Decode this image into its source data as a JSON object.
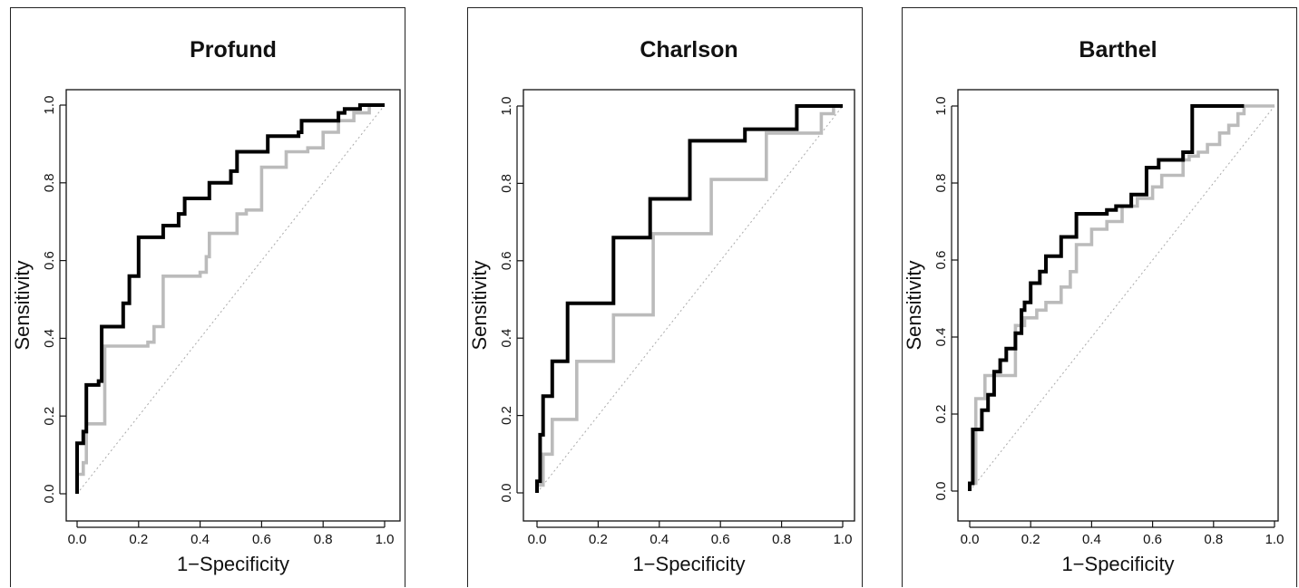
{
  "chart_data": [
    {
      "type": "line",
      "title": "Profund",
      "xlabel": "1−Specificity",
      "ylabel": "Sensitivity",
      "xlim": [
        0,
        1
      ],
      "ylim": [
        0,
        1
      ],
      "xticks": [
        "0.0",
        "0.2",
        "0.4",
        "0.6",
        "0.8",
        "1.0"
      ],
      "yticks": [
        "0.0",
        "0.2",
        "0.4",
        "0.6",
        "0.8",
        "1.0"
      ],
      "reference_line": {
        "style": "dotted",
        "color": "#aaaaaa",
        "x": [
          0,
          1
        ],
        "y": [
          0,
          1
        ]
      },
      "series": [
        {
          "color": "#000000",
          "x": [
            0.0,
            0.0,
            0.02,
            0.02,
            0.03,
            0.03,
            0.07,
            0.07,
            0.08,
            0.08,
            0.15,
            0.15,
            0.17,
            0.17,
            0.2,
            0.2,
            0.28,
            0.28,
            0.33,
            0.33,
            0.35,
            0.35,
            0.43,
            0.43,
            0.5,
            0.5,
            0.52,
            0.52,
            0.62,
            0.62,
            0.72,
            0.72,
            0.73,
            0.73,
            0.85,
            0.85,
            0.87,
            0.87,
            0.92,
            0.92,
            1.0
          ],
          "y": [
            0.0,
            0.13,
            0.13,
            0.16,
            0.16,
            0.28,
            0.28,
            0.29,
            0.29,
            0.43,
            0.43,
            0.49,
            0.49,
            0.56,
            0.56,
            0.66,
            0.66,
            0.69,
            0.69,
            0.72,
            0.72,
            0.76,
            0.76,
            0.8,
            0.8,
            0.83,
            0.83,
            0.88,
            0.88,
            0.92,
            0.92,
            0.93,
            0.93,
            0.96,
            0.96,
            0.98,
            0.98,
            0.99,
            0.99,
            1.0,
            1.0
          ]
        },
        {
          "color": "#bbbbbb",
          "x": [
            0.0,
            0.0,
            0.02,
            0.02,
            0.03,
            0.03,
            0.09,
            0.09,
            0.23,
            0.23,
            0.25,
            0.25,
            0.28,
            0.28,
            0.4,
            0.4,
            0.42,
            0.42,
            0.43,
            0.43,
            0.52,
            0.52,
            0.55,
            0.55,
            0.6,
            0.6,
            0.68,
            0.68,
            0.75,
            0.75,
            0.8,
            0.8,
            0.85,
            0.85,
            0.9,
            0.9,
            0.95,
            0.95,
            1.0
          ],
          "y": [
            0.0,
            0.05,
            0.05,
            0.08,
            0.08,
            0.18,
            0.18,
            0.38,
            0.38,
            0.39,
            0.39,
            0.43,
            0.43,
            0.56,
            0.56,
            0.57,
            0.57,
            0.61,
            0.61,
            0.67,
            0.67,
            0.72,
            0.72,
            0.73,
            0.73,
            0.84,
            0.84,
            0.88,
            0.88,
            0.89,
            0.89,
            0.93,
            0.93,
            0.96,
            0.96,
            0.98,
            0.98,
            1.0,
            1.0
          ]
        }
      ]
    },
    {
      "type": "line",
      "title": "Charlson",
      "xlabel": "1−Specificity",
      "ylabel": "Sensitivity",
      "xlim": [
        0,
        1
      ],
      "ylim": [
        0,
        1
      ],
      "xticks": [
        "0.0",
        "0.2",
        "0.4",
        "0.6",
        "0.8",
        "1.0"
      ],
      "yticks": [
        "0.0",
        "0.2",
        "0.4",
        "0.6",
        "0.8",
        "1.0"
      ],
      "reference_line": {
        "style": "dotted",
        "color": "#aaaaaa",
        "x": [
          0,
          1
        ],
        "y": [
          0,
          1
        ]
      },
      "series": [
        {
          "color": "#000000",
          "x": [
            0.0,
            0.0,
            0.01,
            0.01,
            0.02,
            0.02,
            0.05,
            0.05,
            0.1,
            0.1,
            0.25,
            0.25,
            0.37,
            0.37,
            0.5,
            0.5,
            0.68,
            0.68,
            0.85,
            0.85,
            1.0
          ],
          "y": [
            0.0,
            0.03,
            0.03,
            0.15,
            0.15,
            0.25,
            0.25,
            0.34,
            0.34,
            0.49,
            0.49,
            0.66,
            0.66,
            0.76,
            0.76,
            0.91,
            0.91,
            0.94,
            0.94,
            1.0,
            1.0
          ]
        },
        {
          "color": "#bbbbbb",
          "x": [
            0.0,
            0.0,
            0.02,
            0.02,
            0.05,
            0.05,
            0.13,
            0.13,
            0.25,
            0.25,
            0.38,
            0.38,
            0.57,
            0.57,
            0.75,
            0.75,
            0.93,
            0.93,
            0.97,
            0.97,
            1.0
          ],
          "y": [
            0.0,
            0.02,
            0.02,
            0.1,
            0.1,
            0.19,
            0.19,
            0.34,
            0.34,
            0.46,
            0.46,
            0.67,
            0.67,
            0.81,
            0.81,
            0.93,
            0.93,
            0.98,
            0.98,
            1.0,
            1.0
          ]
        }
      ]
    },
    {
      "type": "line",
      "title": "Barthel",
      "xlabel": "1−Specificity",
      "ylabel": "Sensitivity",
      "xlim": [
        0,
        1
      ],
      "ylim": [
        0,
        1
      ],
      "xticks": [
        "0.0",
        "0.2",
        "0.4",
        "0.6",
        "0.8",
        "1.0"
      ],
      "yticks": [
        "0.0",
        "0.2",
        "0.4",
        "0.6",
        "0.8",
        "1.0"
      ],
      "reference_line": {
        "style": "dotted",
        "color": "#aaaaaa",
        "x": [
          0,
          1
        ],
        "y": [
          0,
          1
        ]
      },
      "series": [
        {
          "color": "#000000",
          "x": [
            0.0,
            0.0,
            0.01,
            0.01,
            0.04,
            0.04,
            0.06,
            0.06,
            0.08,
            0.08,
            0.1,
            0.1,
            0.12,
            0.12,
            0.15,
            0.15,
            0.17,
            0.17,
            0.18,
            0.18,
            0.2,
            0.2,
            0.23,
            0.23,
            0.25,
            0.25,
            0.3,
            0.3,
            0.35,
            0.35,
            0.38,
            0.38,
            0.45,
            0.45,
            0.48,
            0.48,
            0.53,
            0.53,
            0.58,
            0.58,
            0.62,
            0.62,
            0.7,
            0.7,
            0.73,
            0.73,
            0.9
          ],
          "y": [
            0.0,
            0.02,
            0.02,
            0.16,
            0.16,
            0.21,
            0.21,
            0.25,
            0.25,
            0.31,
            0.31,
            0.34,
            0.34,
            0.37,
            0.37,
            0.41,
            0.41,
            0.47,
            0.47,
            0.49,
            0.49,
            0.54,
            0.54,
            0.57,
            0.57,
            0.61,
            0.61,
            0.66,
            0.66,
            0.72,
            0.72,
            0.72,
            0.72,
            0.73,
            0.73,
            0.74,
            0.74,
            0.77,
            0.77,
            0.84,
            0.84,
            0.86,
            0.86,
            0.88,
            0.88,
            1.0,
            1.0
          ]
        },
        {
          "color": "#bbbbbb",
          "x": [
            0.0,
            0.0,
            0.02,
            0.02,
            0.05,
            0.05,
            0.15,
            0.15,
            0.18,
            0.18,
            0.22,
            0.22,
            0.25,
            0.25,
            0.3,
            0.3,
            0.33,
            0.33,
            0.35,
            0.35,
            0.4,
            0.4,
            0.45,
            0.45,
            0.5,
            0.5,
            0.55,
            0.55,
            0.6,
            0.6,
            0.63,
            0.63,
            0.7,
            0.7,
            0.72,
            0.72,
            0.75,
            0.75,
            0.78,
            0.78,
            0.82,
            0.82,
            0.85,
            0.85,
            0.88,
            0.88,
            0.9,
            0.9,
            0.92,
            0.92,
            1.0
          ],
          "y": [
            0.0,
            0.02,
            0.02,
            0.24,
            0.24,
            0.3,
            0.3,
            0.43,
            0.43,
            0.45,
            0.45,
            0.47,
            0.47,
            0.49,
            0.49,
            0.53,
            0.53,
            0.57,
            0.57,
            0.64,
            0.64,
            0.68,
            0.68,
            0.7,
            0.7,
            0.74,
            0.74,
            0.76,
            0.76,
            0.79,
            0.79,
            0.82,
            0.82,
            0.86,
            0.86,
            0.87,
            0.87,
            0.88,
            0.88,
            0.9,
            0.9,
            0.93,
            0.93,
            0.95,
            0.95,
            0.98,
            0.98,
            1.0,
            1.0,
            1.0,
            1.0
          ]
        }
      ]
    }
  ]
}
